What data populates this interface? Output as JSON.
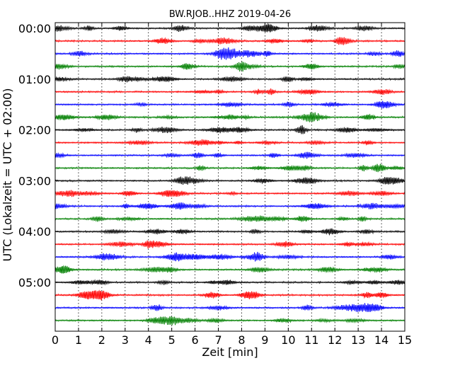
{
  "chart_data": {
    "type": "line",
    "title": "BW.RJOB..HHZ 2019-04-26",
    "xlabel": "Zeit  [min]",
    "ylabel": "UTC (Lokalzeit = UTC + 02:00)",
    "xlim": [
      0,
      15
    ],
    "x_ticks": [
      "0",
      "1",
      "2",
      "3",
      "4",
      "5",
      "6",
      "7",
      "8",
      "9",
      "10",
      "11",
      "12",
      "13",
      "14",
      "15"
    ],
    "y_ticks": [
      "00:00",
      "01:00",
      "02:00",
      "03:00",
      "04:00",
      "05:00"
    ],
    "row_minutes": 15,
    "traces_per_hour": 4,
    "trace_count": 24,
    "trace_colors": [
      "#000000",
      "#ff0000",
      "#0000ff",
      "#008000"
    ],
    "grid": "vertical dotted at each minute"
  }
}
